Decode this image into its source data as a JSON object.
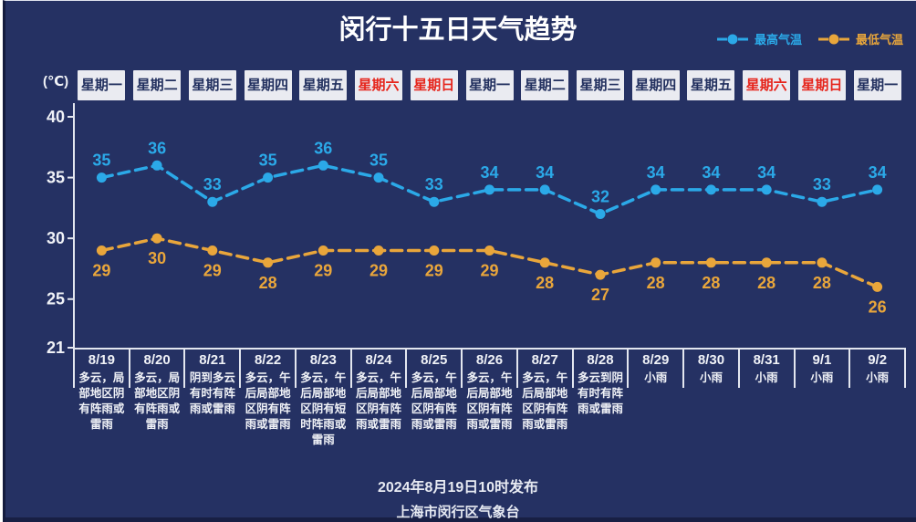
{
  "page": {
    "title": "闵行十五日天气趋势",
    "unit_label": "(℃)",
    "footer_line1": "2024年8月19日10时发布",
    "footer_line2": "上海市闵行区气象台"
  },
  "legend": {
    "max_label": "最高气温",
    "min_label": "最低气温"
  },
  "colors": {
    "background": "#253163",
    "max_series": "#2BA9E8",
    "min_series": "#E9A63B",
    "weekend_text": "#E6251C",
    "weekday_text": "#22305F",
    "weekday_box_background": "#EAEBF1",
    "axis_line": "#E3E6EF",
    "light_text": "#F0F2F7"
  },
  "chart_data": {
    "type": "line",
    "title": "闵行十五日天气趋势",
    "xlabel": "",
    "ylabel": "(℃)",
    "ylim": [
      21,
      40
    ],
    "yticks": [
      40,
      35,
      30,
      25,
      21
    ],
    "grid": false,
    "legend_position": "top-right",
    "line_style": "dashed",
    "x": [
      "8/19",
      "8/20",
      "8/21",
      "8/22",
      "8/23",
      "8/24",
      "8/25",
      "8/26",
      "8/27",
      "8/28",
      "8/29",
      "8/30",
      "8/31",
      "9/1",
      "9/2"
    ],
    "weekdays": [
      {
        "label": "星期一",
        "is_weekend": false
      },
      {
        "label": "星期二",
        "is_weekend": false
      },
      {
        "label": "星期三",
        "is_weekend": false
      },
      {
        "label": "星期四",
        "is_weekend": false
      },
      {
        "label": "星期五",
        "is_weekend": false
      },
      {
        "label": "星期六",
        "is_weekend": true
      },
      {
        "label": "星期日",
        "is_weekend": true
      },
      {
        "label": "星期一",
        "is_weekend": false
      },
      {
        "label": "星期二",
        "is_weekend": false
      },
      {
        "label": "星期三",
        "is_weekend": false
      },
      {
        "label": "星期四",
        "is_weekend": false
      },
      {
        "label": "星期五",
        "is_weekend": false
      },
      {
        "label": "星期六",
        "is_weekend": true
      },
      {
        "label": "星期日",
        "is_weekend": true
      },
      {
        "label": "星期一",
        "is_weekend": false
      }
    ],
    "series": [
      {
        "name": "最高气温",
        "color": "#2BA9E8",
        "values": [
          35,
          36,
          33,
          35,
          36,
          35,
          33,
          34,
          34,
          32,
          34,
          34,
          34,
          33,
          34
        ]
      },
      {
        "name": "最低气温",
        "color": "#E9A63B",
        "values": [
          29,
          30,
          29,
          28,
          29,
          29,
          29,
          29,
          28,
          27,
          28,
          28,
          28,
          28,
          26
        ]
      }
    ],
    "weather": [
      "多云，局部地区阴有阵雨或雷雨",
      "多云，局部地区阴有阵雨或雷雨",
      "阴到多云有时有阵雨或雷雨",
      "多云，午后局部地区阴有阵雨或雷雨",
      "多云，午后局部地区阴有短时阵雨或雷雨",
      "多云，午后局部地区阴有阵雨或雷雨",
      "多云，午后局部地区阴有阵雨或雷雨",
      "多云，午后局部地区阴有阵雨或雷雨",
      "多云，午后局部地区阴有阵雨或雷雨",
      "多云到阴有时有阵雨或雷雨",
      "小雨",
      "小雨",
      "小雨",
      "小雨",
      "小雨"
    ]
  }
}
